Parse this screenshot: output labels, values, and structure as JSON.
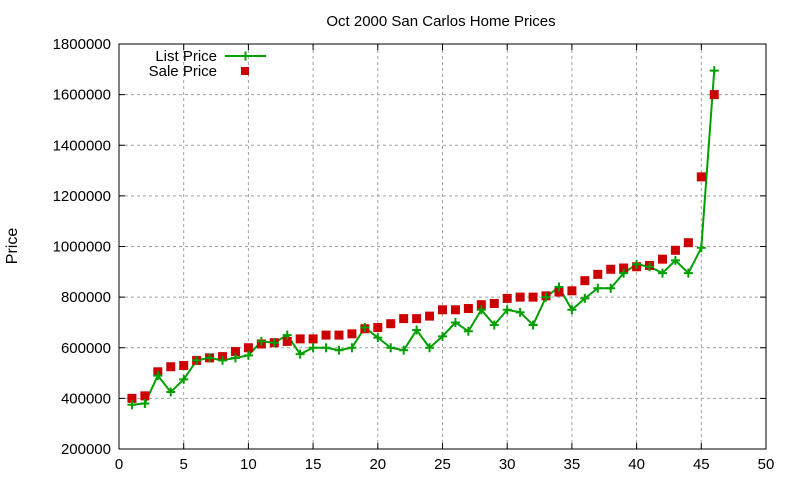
{
  "chart_data": {
    "type": "line",
    "title": "Oct 2000 San Carlos Home Prices",
    "xlabel": "",
    "ylabel": "Price",
    "xlim": [
      0,
      50
    ],
    "ylim": [
      200000,
      1800000
    ],
    "xticks": [
      "0",
      "5",
      "10",
      "15",
      "20",
      "25",
      "30",
      "35",
      "40",
      "45",
      "50"
    ],
    "yticks": [
      "200000",
      "400000",
      "600000",
      "800000",
      "1000000",
      "1200000",
      "1400000",
      "1600000",
      "1800000"
    ],
    "grid": true,
    "legend_position": "top-left",
    "x": [
      1,
      2,
      3,
      4,
      5,
      6,
      7,
      8,
      9,
      10,
      11,
      12,
      13,
      14,
      15,
      16,
      17,
      18,
      19,
      20,
      21,
      22,
      23,
      24,
      25,
      26,
      27,
      28,
      29,
      30,
      31,
      32,
      33,
      34,
      35,
      36,
      37,
      38,
      39,
      40,
      41,
      42,
      43,
      44,
      45,
      46
    ],
    "series": [
      {
        "name": "List Price",
        "style": "linespoints",
        "color": "#00a000",
        "values": [
          375000,
          380000,
          490000,
          425000,
          475000,
          550000,
          560000,
          550000,
          560000,
          570000,
          625000,
          620000,
          650000,
          575000,
          600000,
          600000,
          590000,
          600000,
          680000,
          640000,
          600000,
          590000,
          670000,
          600000,
          645000,
          700000,
          665000,
          750000,
          690000,
          750000,
          740000,
          690000,
          800000,
          840000,
          750000,
          795000,
          835000,
          835000,
          895000,
          930000,
          920000,
          895000,
          945000,
          895000,
          995000,
          1695000
        ]
      },
      {
        "name": "Sale Price",
        "style": "points",
        "color": "#cc0000",
        "values": [
          400000,
          410000,
          505000,
          525000,
          530000,
          550000,
          560000,
          565000,
          585000,
          600000,
          615000,
          620000,
          625000,
          635000,
          635000,
          650000,
          650000,
          655000,
          675000,
          680000,
          695000,
          715000,
          715000,
          725000,
          750000,
          750000,
          755000,
          770000,
          775000,
          795000,
          800000,
          800000,
          805000,
          820000,
          825000,
          865000,
          890000,
          910000,
          915000,
          920000,
          925000,
          950000,
          985000,
          1015000,
          1275000,
          1600000
        ]
      }
    ]
  }
}
